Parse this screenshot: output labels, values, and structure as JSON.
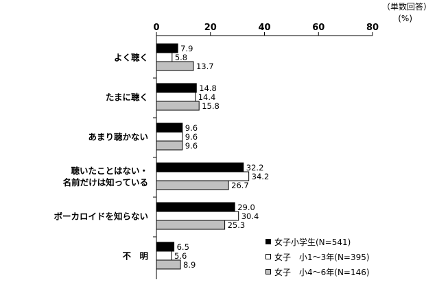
{
  "notes": {
    "answer_type": "（単数回答）",
    "unit": "(%)"
  },
  "chart_data": {
    "type": "bar",
    "orientation": "horizontal",
    "categories": [
      [
        "よく聴く"
      ],
      [
        "たまに聴く"
      ],
      [
        "あまり聴かない"
      ],
      [
        "聴いたことはない・",
        "名前だけは知っている"
      ],
      [
        "ボーカロイドを知らない"
      ],
      [
        "不　明"
      ]
    ],
    "series": [
      {
        "name": "女子小学生(N=541)",
        "color": "#000000",
        "values": [
          7.9,
          14.8,
          9.6,
          32.2,
          29.0,
          6.5
        ]
      },
      {
        "name": "女子　小1～3年(N=395)",
        "color": "#ffffff",
        "values": [
          5.8,
          14.4,
          9.6,
          34.2,
          30.4,
          5.6
        ]
      },
      {
        "name": "女子　小4～6年(N=146)",
        "color": "#c0c0c0",
        "values": [
          13.7,
          15.8,
          9.6,
          26.7,
          25.3,
          8.9
        ]
      }
    ],
    "xlim": [
      0,
      80
    ],
    "xticks": [
      0,
      20,
      40,
      60,
      80
    ],
    "value_decimals": 1,
    "legend_position": "bottom-right",
    "grid": false
  }
}
